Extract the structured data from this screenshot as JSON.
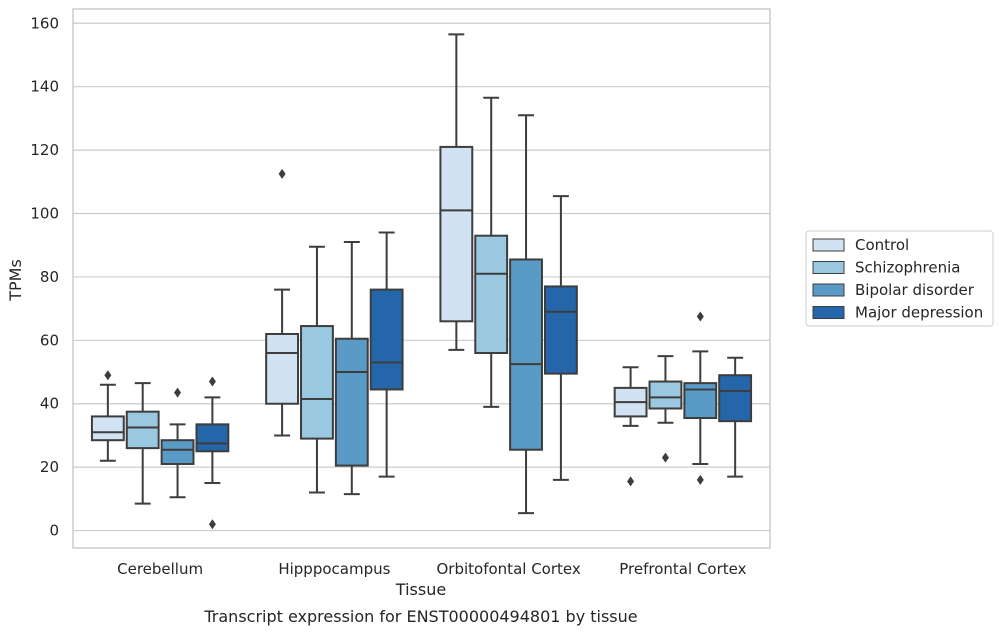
{
  "chart_data": {
    "type": "box",
    "title": "",
    "caption": "Transcript expression for ENST00000494801 by tissue",
    "xlabel": "Tissue",
    "ylabel": "TPMs",
    "ylim": [
      -5.5,
      164.5
    ],
    "yticks": [
      0,
      20,
      40,
      60,
      80,
      100,
      120,
      140,
      160
    ],
    "grid": "horizontal",
    "legend_position": "right-outside",
    "categories": [
      "Cerebellum",
      "Hipppocampus",
      "Orbitofontal Cortex",
      "Prefrontal Cortex"
    ],
    "series": [
      {
        "name": "Control",
        "color": "#d1e2f2",
        "boxes": [
          {
            "whislo": 22,
            "q1": 28.5,
            "med": 31,
            "q3": 36,
            "whishi": 46,
            "fliers": [
              49
            ]
          },
          {
            "whislo": 30,
            "q1": 40,
            "med": 56,
            "q3": 62,
            "whishi": 76,
            "fliers": [
              112.5
            ]
          },
          {
            "whislo": 57,
            "q1": 66,
            "med": 101,
            "q3": 121,
            "whishi": 156.5,
            "fliers": []
          },
          {
            "whislo": 33,
            "q1": 36,
            "med": 40.5,
            "q3": 45,
            "whishi": 51.5,
            "fliers": [
              15.5
            ]
          }
        ]
      },
      {
        "name": "Schizophrenia",
        "color": "#9ac8e0",
        "boxes": [
          {
            "whislo": 8.5,
            "q1": 26,
            "med": 32.5,
            "q3": 37.5,
            "whishi": 46.5,
            "fliers": []
          },
          {
            "whislo": 12,
            "q1": 29,
            "med": 41.5,
            "q3": 64.5,
            "whishi": 89.5,
            "fliers": []
          },
          {
            "whislo": 39,
            "q1": 56,
            "med": 81,
            "q3": 93,
            "whishi": 136.5,
            "fliers": []
          },
          {
            "whislo": 34,
            "q1": 38.5,
            "med": 42,
            "q3": 47,
            "whishi": 55,
            "fliers": [
              23
            ]
          }
        ]
      },
      {
        "name": "Bipolar disorder",
        "color": "#5a9ac6",
        "boxes": [
          {
            "whislo": 10.5,
            "q1": 21,
            "med": 25.5,
            "q3": 28.5,
            "whishi": 33.5,
            "fliers": [
              43.5
            ]
          },
          {
            "whislo": 11.5,
            "q1": 20.5,
            "med": 50,
            "q3": 60.5,
            "whishi": 91,
            "fliers": []
          },
          {
            "whislo": 5.5,
            "q1": 25.5,
            "med": 52.5,
            "q3": 85.5,
            "whishi": 131,
            "fliers": []
          },
          {
            "whislo": 21,
            "q1": 35.5,
            "med": 44.5,
            "q3": 46.5,
            "whishi": 56.5,
            "fliers": [
              16,
              67.5
            ]
          }
        ]
      },
      {
        "name": "Major depression",
        "color": "#2466a9",
        "boxes": [
          {
            "whislo": 15,
            "q1": 25,
            "med": 27.5,
            "q3": 33.5,
            "whishi": 42,
            "fliers": [
              2,
              47
            ]
          },
          {
            "whislo": 17,
            "q1": 44.5,
            "med": 53,
            "q3": 76,
            "whishi": 94,
            "fliers": []
          },
          {
            "whislo": 16,
            "q1": 49.5,
            "med": 69,
            "q3": 77,
            "whishi": 105.5,
            "fliers": []
          },
          {
            "whislo": 17,
            "q1": 34.5,
            "med": 44,
            "q3": 49,
            "whishi": 54.5,
            "fliers": []
          }
        ]
      }
    ]
  }
}
